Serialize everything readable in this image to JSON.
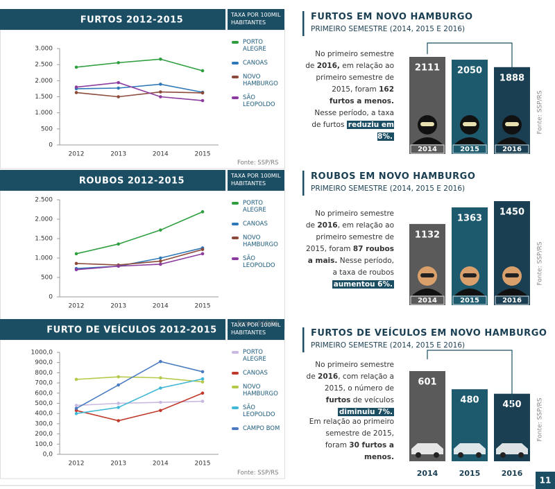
{
  "chart_data": [
    {
      "type": "line",
      "title": "FURTOS 2012-2015",
      "note": "TAXA POR 100MIL HABITANTES",
      "source": "Fonte: SSP/RS",
      "categories": [
        "2012",
        "2013",
        "2014",
        "2015"
      ],
      "ylim": [
        0,
        3000
      ],
      "yticks": [
        0,
        500,
        {
          "value": 1000,
          "label": "1.000"
        },
        {
          "value": 1500,
          "label": "1.500"
        },
        {
          "value": 2000,
          "label": "2.000"
        },
        {
          "value": 2500,
          "label": "2.500"
        },
        {
          "value": 3000,
          "label": "3.000"
        }
      ],
      "series": [
        {
          "name": "PORTO ALEGRE",
          "color": "#2e9e3e",
          "values": [
            2420,
            2560,
            2670,
            2310
          ]
        },
        {
          "name": "CANOAS",
          "color": "#2f78b8",
          "values": [
            1750,
            1770,
            1890,
            1640
          ]
        },
        {
          "name": "NOVO HAMBURGO",
          "color": "#8b4a3a",
          "values": [
            1630,
            1500,
            1650,
            1620
          ]
        },
        {
          "name": "SÃO LEOPOLDO",
          "color": "#8b3c9e",
          "values": [
            1800,
            1940,
            1500,
            1380
          ]
        }
      ]
    },
    {
      "type": "line",
      "title": "ROUBOS 2012-2015",
      "note": "TAXA POR 100MIL HABITANTES",
      "source": "Fonte: SSP/RS",
      "categories": [
        "2012",
        "2013",
        "2014",
        "2015"
      ],
      "ylim": [
        0,
        2500
      ],
      "yticks": [
        0,
        500,
        {
          "value": 1000,
          "label": "1.000"
        },
        {
          "value": 1500,
          "label": "1.500"
        },
        {
          "value": 2000,
          "label": "2.000"
        },
        {
          "value": 2500,
          "label": "2.500"
        }
      ],
      "series": [
        {
          "name": "PORTO ALEGRE",
          "color": "#2e9e3e",
          "values": [
            1110,
            1360,
            1720,
            2190
          ]
        },
        {
          "name": "CANOAS",
          "color": "#2f78b8",
          "values": [
            730,
            790,
            1000,
            1260
          ]
        },
        {
          "name": "NOVO HAMBURGO",
          "color": "#8b4a3a",
          "values": [
            860,
            820,
            920,
            1220
          ]
        },
        {
          "name": "SÃO LEOPOLDO",
          "color": "#8b3c9e",
          "values": [
            700,
            790,
            840,
            1110
          ]
        }
      ]
    },
    {
      "type": "line",
      "title": "FURTO DE VEÍCULOS 2012-2015",
      "note": "TAXA POR 100MIL HABITANTES",
      "source": "Fonte: SSP/RS",
      "categories": [
        "2012",
        "2013",
        "2014",
        "2015"
      ],
      "ylim": [
        0,
        1000
      ],
      "yticks": [
        {
          "value": 0,
          "label": "0,0"
        },
        {
          "value": 100,
          "label": "100,0"
        },
        {
          "value": 200,
          "label": "200,0"
        },
        {
          "value": 300,
          "label": "300,0"
        },
        {
          "value": 400,
          "label": "400,0"
        },
        {
          "value": 500,
          "label": "500,0"
        },
        {
          "value": 600,
          "label": "600,0"
        },
        {
          "value": 700,
          "label": "700,0"
        },
        {
          "value": 800,
          "label": "800,0"
        },
        {
          "value": 900,
          "label": "900,0"
        },
        {
          "value": 1000,
          "label": "1000,0"
        }
      ],
      "series": [
        {
          "name": "PORTO ALEGRE",
          "color": "#c9b8e0",
          "values": [
            480,
            500,
            510,
            520
          ]
        },
        {
          "name": "CANOAS",
          "color": "#c0392b",
          "values": [
            430,
            330,
            430,
            600
          ]
        },
        {
          "name": "NOVO HAMBURGO",
          "color": "#b5c94a",
          "values": [
            735,
            760,
            750,
            710
          ]
        },
        {
          "name": "SÃO LEOPOLDO",
          "color": "#41b8d5",
          "values": [
            400,
            460,
            650,
            740
          ]
        },
        {
          "name": "CAMPO BOM",
          "color": "#4a7bc0",
          "values": [
            450,
            680,
            910,
            810
          ]
        }
      ]
    }
  ],
  "panels": [
    {
      "title": "FURTOS EM NOVO HAMBURGO",
      "subtitle": "PRIMEIRO SEMESTRE (2014, 2015 E 2016)",
      "source": "Fonte: SSP/RS",
      "text": [
        {
          "text": "No primeiro semestre de "
        },
        {
          "text": "2016,",
          "bold": true
        },
        {
          "text": " em relação ao primeiro semestre de 2015, foram "
        },
        {
          "text": "162 furtos a menos.",
          "bold": true
        },
        {
          "text": " Nesse período, a taxa de furtos "
        },
        {
          "text": "reduziu em 8%.",
          "highlight": true
        }
      ],
      "categories": [
        "2014",
        "2015",
        "2016"
      ],
      "values": [
        2111,
        2050,
        1888
      ]
    },
    {
      "title": "ROUBOS EM NOVO HAMBURGO",
      "subtitle": "PRIMEIRO SEMESTRE (2014, 2015 E 2016)",
      "source": "Fonte: SSP/RS",
      "text": [
        {
          "text": "No primeiro semestre de "
        },
        {
          "text": "2016",
          "bold": true
        },
        {
          "text": ", em relação ao primeiro semestre de 2015, foram "
        },
        {
          "text": "87 roubos a mais.",
          "bold": true
        },
        {
          "text": " Nesse período, a taxa de roubos "
        },
        {
          "text": "aumentou 6%.",
          "highlight": true
        }
      ],
      "categories": [
        "2014",
        "2015",
        "2016"
      ],
      "values": [
        1132,
        1363,
        1450
      ]
    },
    {
      "title": "FURTOS DE VEÍCULOS EM NOVO HAMBURGO",
      "subtitle": "PRIMEIRO SEMESTRE (2014, 2015 E 2016)",
      "source": "Fonte: SSP/RS",
      "text": [
        {
          "text": "No primeiro semestre de "
        },
        {
          "text": "2016",
          "bold": true
        },
        {
          "text": ", com relação a 2015, o número de "
        },
        {
          "text": "furtos",
          "bold": true
        },
        {
          "text": " de veículos "
        },
        {
          "text": "diminuiu 7%.",
          "highlight": true
        }
      ],
      "text2": [
        {
          "text": "Em relação ao primeiro semestre de 2015, foram "
        },
        {
          "text": "30 furtos a menos.",
          "bold": true
        }
      ],
      "categories": [
        "2014",
        "2015",
        "2016"
      ],
      "values": [
        601,
        480,
        450
      ]
    }
  ],
  "page_number": "11"
}
